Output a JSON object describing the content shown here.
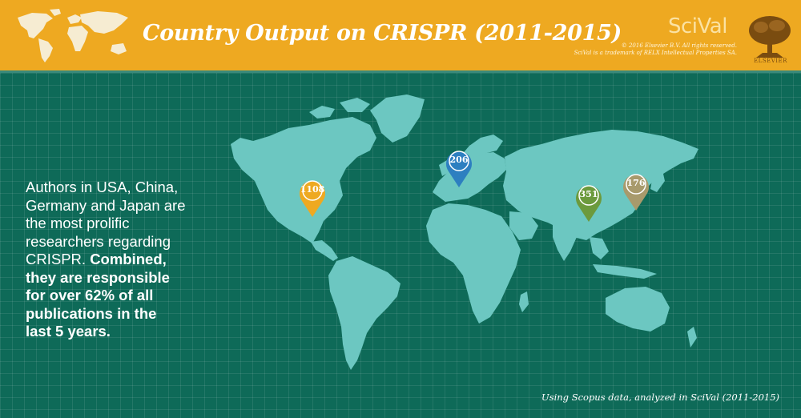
{
  "header": {
    "title": "Country Output on CRISPR (2011-2015)",
    "brand": "SciVal",
    "copyright_line1": "© 2016 Elsevier B.V. All rights reserved.",
    "copyright_line2": "SciVal is a trademark of RELX Intellectual Properties SA.",
    "publisher": "ELSEVIER"
  },
  "description": {
    "plain": "Authors in USA, China, Germany and Japan are the most prolific researchers regarding CRISPR.",
    "bold": "Combined, they are responsible for over 62% of all publications in the last 5 years."
  },
  "pins": [
    {
      "value": "1108",
      "color": "#eea921"
    },
    {
      "value": "206",
      "color": "#2d7fc0"
    },
    {
      "value": "351",
      "color": "#6c9a3d"
    },
    {
      "value": "176",
      "color": "#a89a6c"
    }
  ],
  "source": "Using Scopus data, analyzed in SciVal (2011-2015)",
  "colors": {
    "header": "#eea921",
    "background": "#0e6a58",
    "land": "#6cc7c1"
  }
}
